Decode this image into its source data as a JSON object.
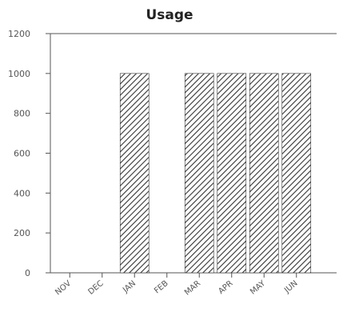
{
  "chart_data": {
    "type": "bar",
    "title": "Usage",
    "xlabel": "",
    "ylabel": "",
    "categories": [
      "NOV",
      "DEC",
      "JAN",
      "FEB",
      "MAR",
      "APR",
      "MAY",
      "JUN"
    ],
    "values": [
      0,
      0,
      1000,
      0,
      1000,
      1000,
      1000,
      1000
    ],
    "ylim": [
      0,
      1200
    ],
    "yticks": [
      {
        "value": 0,
        "label": "0"
      },
      {
        "value": 200,
        "label": "200"
      },
      {
        "value": 400,
        "label": "400"
      },
      {
        "value": 600,
        "label": "600"
      },
      {
        "value": 800,
        "label": "800"
      },
      {
        "value": 1000,
        "label": "1000"
      },
      {
        "value": 1200,
        "label": "1200"
      }
    ],
    "grid": false,
    "legend": "none",
    "bar_fill": "hatched",
    "colors": {
      "bar_stroke": "#333333",
      "axis": "#555555",
      "text": "#555555"
    }
  }
}
